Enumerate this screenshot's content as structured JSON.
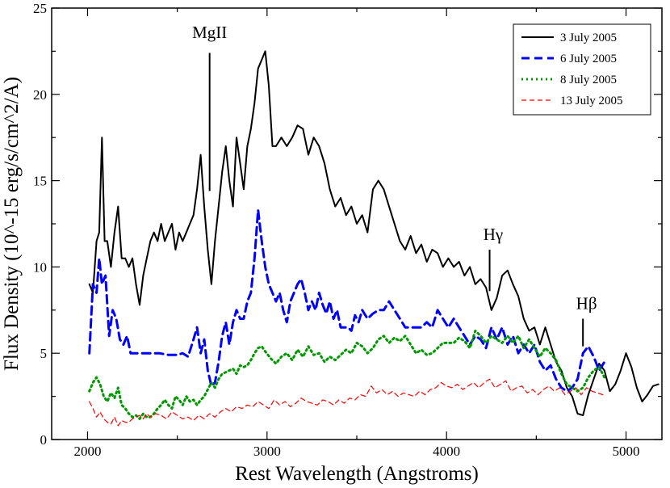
{
  "chart_data": {
    "type": "line",
    "title": "",
    "xlabel": "Rest Wavelength (Angstroms)",
    "ylabel": "Flux Density (10^-15 erg/s/cm^2/A)",
    "xlim": [
      1800,
      5200
    ],
    "ylim": [
      0,
      25
    ],
    "xticks": [
      2000,
      3000,
      4000,
      5000
    ],
    "yticks": [
      0,
      5,
      10,
      15,
      20,
      25
    ],
    "grid": false,
    "legend_position": "top-right",
    "series": [
      {
        "name": "3 July 2005",
        "color": "#000000",
        "style": "solid",
        "x": [
          2010,
          2030,
          2050,
          2065,
          2080,
          2095,
          2110,
          2130,
          2150,
          2170,
          2190,
          2210,
          2230,
          2250,
          2270,
          2290,
          2310,
          2330,
          2350,
          2370,
          2390,
          2410,
          2430,
          2450,
          2470,
          2490,
          2510,
          2530,
          2550,
          2570,
          2590,
          2610,
          2630,
          2650,
          2670,
          2690,
          2710,
          2730,
          2750,
          2770,
          2790,
          2810,
          2830,
          2850,
          2870,
          2890,
          2910,
          2930,
          2950,
          2970,
          2990,
          3010,
          3030,
          3050,
          3080,
          3110,
          3140,
          3170,
          3200,
          3230,
          3260,
          3290,
          3320,
          3350,
          3380,
          3410,
          3440,
          3470,
          3500,
          3530,
          3560,
          3590,
          3620,
          3650,
          3680,
          3710,
          3740,
          3770,
          3800,
          3830,
          3860,
          3890,
          3920,
          3950,
          3980,
          4010,
          4040,
          4070,
          4100,
          4130,
          4160,
          4190,
          4220,
          4250,
          4280,
          4310,
          4340,
          4370,
          4400,
          4430,
          4460,
          4490,
          4520,
          4550,
          4580,
          4610,
          4640,
          4670,
          4700,
          4730,
          4760,
          4790,
          4820,
          4850,
          4880,
          4910,
          4940,
          4970,
          5000,
          5030,
          5060,
          5090,
          5120,
          5150,
          5180
        ],
        "y": [
          9.0,
          8.5,
          11.5,
          12.0,
          17.5,
          11.5,
          11.5,
          10.0,
          12.0,
          13.5,
          10.5,
          10.5,
          10.0,
          10.5,
          9.0,
          7.8,
          9.5,
          10.5,
          11.5,
          12.0,
          11.5,
          12.5,
          11.5,
          12.0,
          12.5,
          11.0,
          12.0,
          11.5,
          12.0,
          12.5,
          13.0,
          14.5,
          16.5,
          13.5,
          11.0,
          9.0,
          11.5,
          13.5,
          15.5,
          17.0,
          15.0,
          13.5,
          17.5,
          16.0,
          14.5,
          17.0,
          18.0,
          19.5,
          21.5,
          22.0,
          22.5,
          20.5,
          17.0,
          17.0,
          17.5,
          17.0,
          17.5,
          18.2,
          18.0,
          16.5,
          17.5,
          17.0,
          16.0,
          14.5,
          13.5,
          14.0,
          13.0,
          13.5,
          12.5,
          13.0,
          12.0,
          14.5,
          15.0,
          14.5,
          13.5,
          12.5,
          11.5,
          11.0,
          11.8,
          10.8,
          11.3,
          10.3,
          11.0,
          10.8,
          10.0,
          10.5,
          10.0,
          10.3,
          9.5,
          10.0,
          9.0,
          9.3,
          8.8,
          7.5,
          8.2,
          9.5,
          9.8,
          9.0,
          8.3,
          7.0,
          6.3,
          6.5,
          5.5,
          6.5,
          5.5,
          4.5,
          4.0,
          3.0,
          2.5,
          1.5,
          1.4,
          2.6,
          3.5,
          4.4,
          4.0,
          2.8,
          3.2,
          4.0,
          5.0,
          4.2,
          3.0,
          2.2,
          2.6,
          3.1,
          3.2
        ]
      },
      {
        "name": "6 July 2005",
        "color": "#0000ff",
        "style": "dashed",
        "x": [
          2010,
          2030,
          2050,
          2065,
          2080,
          2100,
          2120,
          2140,
          2160,
          2180,
          2200,
          2220,
          2240,
          2260,
          2300,
          2350,
          2400,
          2450,
          2500,
          2530,
          2560,
          2590,
          2610,
          2630,
          2650,
          2670,
          2690,
          2710,
          2730,
          2750,
          2770,
          2790,
          2810,
          2830,
          2850,
          2870,
          2890,
          2910,
          2930,
          2950,
          2970,
          2990,
          3010,
          3030,
          3050,
          3070,
          3090,
          3110,
          3130,
          3150,
          3170,
          3190,
          3210,
          3230,
          3250,
          3270,
          3290,
          3310,
          3330,
          3350,
          3370,
          3390,
          3410,
          3430,
          3450,
          3470,
          3490,
          3510,
          3530,
          3560,
          3590,
          3620,
          3650,
          3680,
          3710,
          3740,
          3770,
          3800,
          3830,
          3860,
          3890,
          3920,
          3950,
          3980,
          4010,
          4040,
          4070,
          4100,
          4130,
          4160,
          4190,
          4220,
          4250,
          4280,
          4310,
          4340,
          4370,
          4400,
          4430,
          4460,
          4490,
          4520,
          4550,
          4580,
          4610,
          4640,
          4670,
          4700,
          4730,
          4760,
          4790,
          4820,
          4850,
          4880
        ],
        "y": [
          5.0,
          9.0,
          8.5,
          10.5,
          9.0,
          9.5,
          6.0,
          7.5,
          7.0,
          5.8,
          5.5,
          6.0,
          5.0,
          5.0,
          5.0,
          5.0,
          5.0,
          4.9,
          4.9,
          5.0,
          4.8,
          5.8,
          6.5,
          5.0,
          5.8,
          4.0,
          3.1,
          3.3,
          4.5,
          6.0,
          6.8,
          5.5,
          6.8,
          7.5,
          7.0,
          7.0,
          8.0,
          8.5,
          10.5,
          13.3,
          11.5,
          10.0,
          9.0,
          8.5,
          8.0,
          8.5,
          7.5,
          6.8,
          8.0,
          8.5,
          9.0,
          9.3,
          8.5,
          7.5,
          8.0,
          7.5,
          8.5,
          7.8,
          7.3,
          8.0,
          7.0,
          7.5,
          6.5,
          6.5,
          6.5,
          6.3,
          7.2,
          6.8,
          7.5,
          7.0,
          7.3,
          7.5,
          7.5,
          8.0,
          7.5,
          7.0,
          6.5,
          6.5,
          6.5,
          6.5,
          6.8,
          6.5,
          7.5,
          7.0,
          6.5,
          7.0,
          6.5,
          6.0,
          5.5,
          6.0,
          5.8,
          5.3,
          6.5,
          5.8,
          6.5,
          5.5,
          6.0,
          5.0,
          5.5,
          5.0,
          5.5,
          4.5,
          4.0,
          4.3,
          3.5,
          3.0,
          2.8,
          3.0,
          3.5,
          5.0,
          5.4,
          4.8,
          4.0,
          4.5
        ]
      },
      {
        "name": "8 July 2005",
        "color": "#009900",
        "style": "dotted",
        "x": [
          2010,
          2030,
          2050,
          2070,
          2090,
          2110,
          2130,
          2150,
          2170,
          2190,
          2210,
          2230,
          2250,
          2270,
          2290,
          2310,
          2330,
          2350,
          2370,
          2390,
          2410,
          2430,
          2450,
          2470,
          2490,
          2510,
          2530,
          2550,
          2570,
          2590,
          2610,
          2630,
          2650,
          2670,
          2690,
          2710,
          2730,
          2750,
          2770,
          2790,
          2810,
          2830,
          2850,
          2870,
          2890,
          2910,
          2930,
          2950,
          2970,
          2990,
          3020,
          3050,
          3080,
          3110,
          3140,
          3170,
          3200,
          3230,
          3260,
          3290,
          3320,
          3350,
          3380,
          3410,
          3440,
          3470,
          3500,
          3530,
          3560,
          3590,
          3620,
          3650,
          3680,
          3710,
          3740,
          3770,
          3800,
          3830,
          3860,
          3890,
          3920,
          3950,
          3980,
          4010,
          4040,
          4070,
          4100,
          4130,
          4160,
          4190,
          4220,
          4250,
          4280,
          4310,
          4340,
          4370,
          4400,
          4430,
          4460,
          4490,
          4520,
          4550,
          4580,
          4610,
          4640,
          4670,
          4700,
          4730,
          4760,
          4790,
          4820,
          4850,
          4880
        ],
        "y": [
          2.8,
          3.3,
          3.6,
          3.2,
          2.5,
          2.2,
          2.7,
          2.4,
          3.0,
          2.0,
          1.8,
          1.5,
          1.3,
          1.4,
          1.2,
          1.5,
          1.3,
          1.3,
          1.5,
          1.8,
          2.0,
          2.3,
          2.0,
          1.8,
          2.5,
          2.3,
          2.0,
          2.5,
          2.2,
          2.3,
          2.0,
          2.3,
          2.5,
          2.9,
          3.3,
          3.0,
          3.5,
          3.8,
          3.9,
          4.0,
          4.1,
          3.8,
          4.3,
          4.2,
          4.3,
          4.6,
          5.0,
          5.3,
          5.4,
          5.1,
          4.7,
          4.4,
          4.8,
          5.0,
          4.6,
          5.2,
          4.8,
          5.4,
          4.9,
          5.0,
          4.5,
          4.8,
          4.6,
          4.9,
          5.2,
          5.0,
          5.6,
          5.4,
          5.0,
          5.3,
          5.8,
          6.0,
          5.6,
          5.9,
          5.7,
          6.0,
          5.5,
          5.0,
          5.2,
          4.9,
          5.0,
          5.3,
          5.6,
          5.6,
          5.6,
          5.9,
          5.7,
          5.3,
          6.3,
          6.0,
          5.6,
          6.0,
          5.8,
          5.6,
          6.0,
          5.6,
          6.0,
          5.3,
          5.8,
          5.3,
          4.8,
          5.3,
          5.0,
          4.6,
          3.8,
          3.2,
          3.0,
          2.8,
          3.0,
          3.6,
          4.0,
          4.2,
          3.6
        ]
      },
      {
        "name": "13 July 2005",
        "color": "#ff0000",
        "style": "dashed",
        "x": [
          2010,
          2030,
          2050,
          2070,
          2090,
          2110,
          2130,
          2150,
          2170,
          2190,
          2210,
          2230,
          2250,
          2270,
          2290,
          2310,
          2330,
          2350,
          2380,
          2410,
          2440,
          2470,
          2500,
          2530,
          2560,
          2590,
          2620,
          2650,
          2680,
          2710,
          2740,
          2770,
          2800,
          2830,
          2860,
          2890,
          2920,
          2950,
          2980,
          3010,
          3040,
          3070,
          3100,
          3130,
          3160,
          3190,
          3220,
          3250,
          3280,
          3310,
          3340,
          3370,
          3400,
          3430,
          3460,
          3490,
          3520,
          3550,
          3580,
          3610,
          3640,
          3670,
          3700,
          3730,
          3760,
          3790,
          3820,
          3850,
          3880,
          3910,
          3940,
          3970,
          4000,
          4030,
          4060,
          4090,
          4120,
          4150,
          4180,
          4210,
          4240,
          4270,
          4300,
          4330,
          4360,
          4390,
          4420,
          4450,
          4480,
          4510,
          4540,
          4570,
          4600,
          4630,
          4660,
          4690,
          4720,
          4750,
          4780,
          4810,
          4840,
          4870
        ],
        "y": [
          2.2,
          1.8,
          1.3,
          1.6,
          1.2,
          1.0,
          0.9,
          1.3,
          0.8,
          1.1,
          1.0,
          1.0,
          1.2,
          1.3,
          1.4,
          1.2,
          1.5,
          1.3,
          1.5,
          1.4,
          1.2,
          1.6,
          1.4,
          1.2,
          1.3,
          1.1,
          1.4,
          1.2,
          1.5,
          1.3,
          1.6,
          1.8,
          1.6,
          1.9,
          1.8,
          2.0,
          1.9,
          2.2,
          2.0,
          1.8,
          2.3,
          2.0,
          2.2,
          1.9,
          2.1,
          2.4,
          2.2,
          2.1,
          2.0,
          2.3,
          2.2,
          2.0,
          2.3,
          2.1,
          2.4,
          2.3,
          2.6,
          2.5,
          3.1,
          2.7,
          2.9,
          2.6,
          2.8,
          2.5,
          2.7,
          2.6,
          2.5,
          2.8,
          2.6,
          2.9,
          3.0,
          3.3,
          3.1,
          3.0,
          3.2,
          2.9,
          3.1,
          3.3,
          3.0,
          3.3,
          3.5,
          3.0,
          3.2,
          3.4,
          2.8,
          3.0,
          3.1,
          2.7,
          2.9,
          2.6,
          2.9,
          3.1,
          2.8,
          3.0,
          2.6,
          2.8,
          3.0,
          2.6,
          3.0,
          2.8,
          2.7,
          2.6
        ]
      }
    ],
    "annotations": [
      {
        "label": "MgII",
        "line_x": 2680,
        "line_y": [
          14.4,
          22.4
        ],
        "label_x": 2680,
        "label_y": 23.6
      },
      {
        "label": "Hγ",
        "line_x": 4240,
        "line_y": [
          8.6,
          11.0
        ],
        "label_x": 4260,
        "label_y": 11.9
      },
      {
        "label": "Hβ",
        "line_x": 4760,
        "line_y": [
          5.4,
          7.0
        ],
        "label_x": 4780,
        "label_y": 7.9
      }
    ]
  }
}
